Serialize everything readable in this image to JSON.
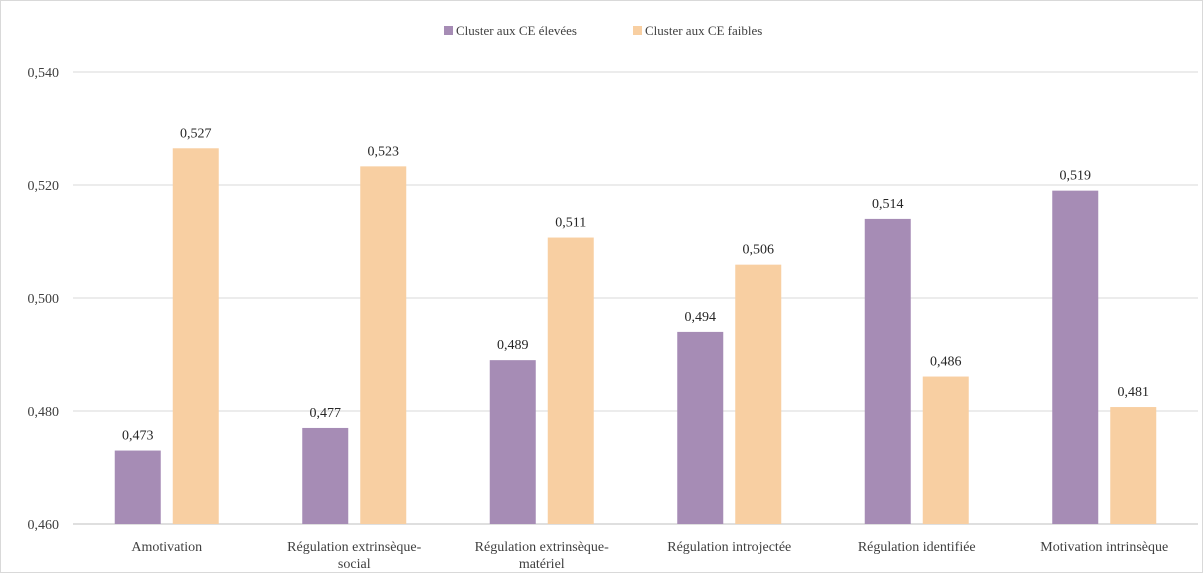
{
  "chart_data": {
    "type": "bar",
    "title": "",
    "xlabel": "",
    "ylabel": "",
    "ylim": [
      0.46,
      0.54
    ],
    "yticks": [
      "0,460",
      "0,480",
      "0,500",
      "0,520",
      "0,540"
    ],
    "ytick_values": [
      0.46,
      0.48,
      0.5,
      0.52,
      0.54
    ],
    "grid": "horizontal",
    "legend_position": "top",
    "categories": [
      [
        "Amotivation"
      ],
      [
        "Régulation extrinsèque-",
        "social"
      ],
      [
        "Régulation extrinsèque-",
        "matériel"
      ],
      [
        "Régulation introjectée"
      ],
      [
        "Régulation identifiée"
      ],
      [
        "Motivation intrinsèque"
      ]
    ],
    "series": [
      {
        "name": "Cluster aux CE élevées",
        "color": "#a68cb5",
        "values": [
          0.473,
          0.477,
          0.489,
          0.494,
          0.514,
          0.519
        ],
        "labels": [
          "0,473",
          "0,477",
          "0,489",
          "0,494",
          "0,514",
          "0,519"
        ]
      },
      {
        "name": "Cluster aux CE faibles",
        "color": "#f8cfa2",
        "values": [
          0.5265,
          0.5233,
          0.5107,
          0.5059,
          0.4861,
          0.4807
        ],
        "labels": [
          "0,527",
          "0,523",
          "0,511",
          "0,506",
          "0,486",
          "0,481"
        ]
      }
    ]
  }
}
